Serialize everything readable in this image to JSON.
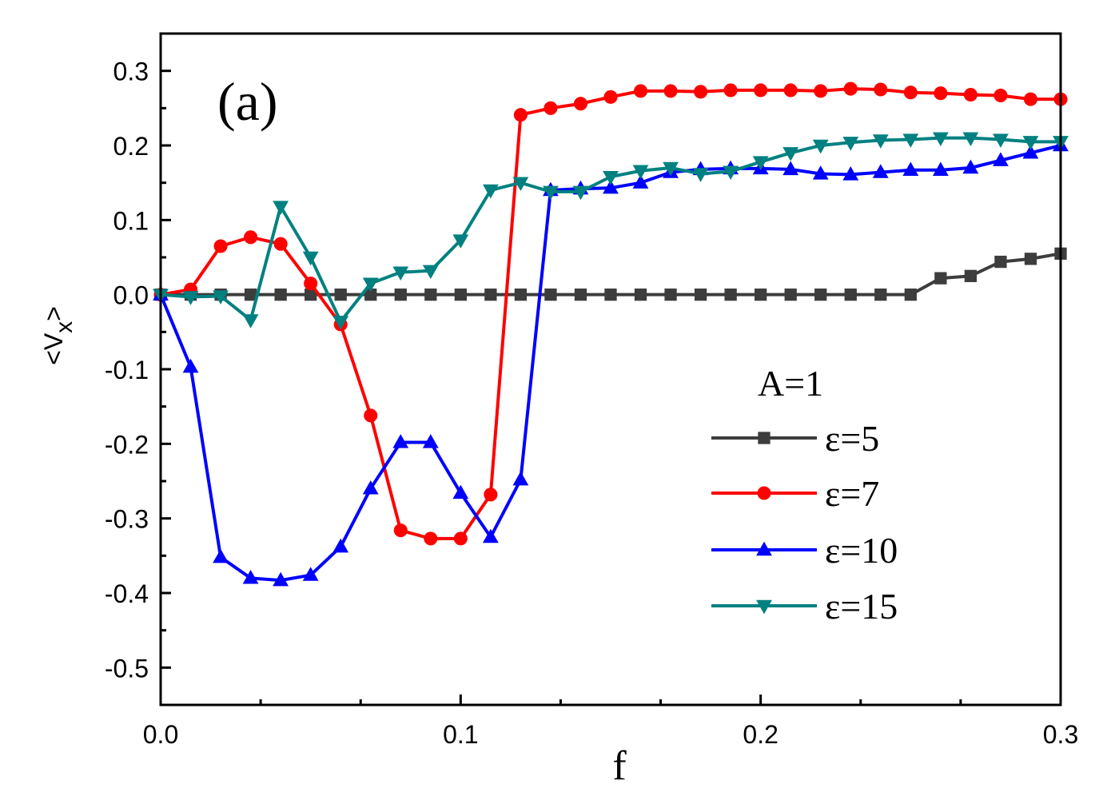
{
  "chart_data": {
    "type": "line",
    "panel_label": "(a)",
    "xlabel": "f",
    "ylabel": "<V_x>",
    "ylabel_main": "<V",
    "ylabel_sub": "x",
    "ylabel_close": ">",
    "xlim": [
      0.0,
      0.3
    ],
    "ylim": [
      -0.55,
      0.35
    ],
    "xticks": [
      0.0,
      0.1,
      0.2,
      0.3
    ],
    "xtick_labels": [
      "0.0",
      "0.1",
      "0.2",
      "0.3"
    ],
    "yticks": [
      0.3,
      0.2,
      0.1,
      0.0,
      -0.1,
      -0.2,
      -0.3,
      -0.4,
      -0.5
    ],
    "ytick_labels": [
      "0.3",
      "0.2",
      "0.1",
      "0.0",
      "-0.1",
      "-0.2",
      "-0.3",
      "-0.4",
      "-0.5"
    ],
    "grid": false,
    "legend_title": "A=1",
    "legend_position": "lower-right",
    "series": [
      {
        "name": "ε=5",
        "color": "#3d3d3d",
        "marker": "square",
        "x": [
          0.0,
          0.01,
          0.02,
          0.03,
          0.04,
          0.05,
          0.06,
          0.07,
          0.08,
          0.09,
          0.1,
          0.11,
          0.12,
          0.13,
          0.14,
          0.15,
          0.16,
          0.17,
          0.18,
          0.19,
          0.2,
          0.21,
          0.22,
          0.23,
          0.24,
          0.25,
          0.26,
          0.27,
          0.28,
          0.29,
          0.3
        ],
        "y": [
          0.0,
          0.0,
          0.0,
          0.0,
          0.0,
          0.0,
          0.0,
          0.0,
          0.0,
          0.0,
          0.0,
          0.0,
          0.0,
          0.0,
          0.0,
          0.0,
          0.0,
          0.0,
          0.0,
          0.0,
          0.0,
          0.0,
          0.0,
          0.0,
          0.0,
          0.0,
          0.022,
          0.025,
          0.044,
          0.048,
          0.055
        ]
      },
      {
        "name": "ε=7",
        "color": "#ff0000",
        "marker": "circle",
        "x": [
          0.0,
          0.01,
          0.02,
          0.03,
          0.04,
          0.05,
          0.06,
          0.07,
          0.08,
          0.09,
          0.1,
          0.11,
          0.12,
          0.13,
          0.14,
          0.15,
          0.16,
          0.17,
          0.18,
          0.19,
          0.2,
          0.21,
          0.22,
          0.23,
          0.24,
          0.25,
          0.26,
          0.27,
          0.28,
          0.29,
          0.3
        ],
        "y": [
          0.0,
          0.007,
          0.065,
          0.077,
          0.068,
          0.015,
          -0.04,
          -0.162,
          -0.316,
          -0.327,
          -0.327,
          -0.268,
          0.241,
          0.25,
          0.256,
          0.265,
          0.273,
          0.273,
          0.272,
          0.274,
          0.274,
          0.274,
          0.273,
          0.276,
          0.275,
          0.271,
          0.27,
          0.268,
          0.267,
          0.262,
          0.262
        ]
      },
      {
        "name": "ε=10",
        "color": "#0000ff",
        "marker": "triangle-up",
        "x": [
          0.0,
          0.01,
          0.02,
          0.03,
          0.04,
          0.05,
          0.06,
          0.07,
          0.08,
          0.09,
          0.1,
          0.11,
          0.12,
          0.13,
          0.14,
          0.15,
          0.16,
          0.17,
          0.18,
          0.19,
          0.2,
          0.21,
          0.22,
          0.23,
          0.24,
          0.25,
          0.26,
          0.27,
          0.28,
          0.29,
          0.3
        ],
        "y": [
          0.0,
          -0.097,
          -0.352,
          -0.38,
          -0.383,
          -0.376,
          -0.338,
          -0.26,
          -0.198,
          -0.198,
          -0.266,
          -0.325,
          -0.248,
          0.14,
          0.142,
          0.143,
          0.15,
          0.164,
          0.168,
          0.169,
          0.169,
          0.168,
          0.162,
          0.161,
          0.164,
          0.167,
          0.167,
          0.17,
          0.18,
          0.19,
          0.2
        ]
      },
      {
        "name": "ε=15",
        "color": "#008080",
        "marker": "triangle-down",
        "x": [
          0.0,
          0.01,
          0.02,
          0.03,
          0.04,
          0.05,
          0.06,
          0.07,
          0.08,
          0.09,
          0.1,
          0.11,
          0.12,
          0.13,
          0.14,
          0.15,
          0.16,
          0.17,
          0.18,
          0.19,
          0.2,
          0.21,
          0.22,
          0.23,
          0.24,
          0.25,
          0.26,
          0.27,
          0.28,
          0.29,
          0.3
        ],
        "y": [
          0.0,
          -0.003,
          -0.002,
          -0.034,
          0.118,
          0.05,
          -0.036,
          0.015,
          0.03,
          0.032,
          0.073,
          0.14,
          0.15,
          0.138,
          0.138,
          0.158,
          0.166,
          0.17,
          0.162,
          0.165,
          0.178,
          0.19,
          0.2,
          0.204,
          0.207,
          0.208,
          0.21,
          0.21,
          0.208,
          0.205,
          0.205
        ]
      }
    ]
  }
}
